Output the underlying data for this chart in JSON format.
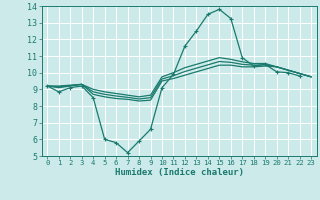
{
  "xlabel": "Humidex (Indice chaleur)",
  "bg_color": "#cceaea",
  "grid_color": "#ffffff",
  "line_color": "#1a7a6e",
  "xlim": [
    -0.5,
    23.5
  ],
  "ylim": [
    5,
    14
  ],
  "xticks": [
    0,
    1,
    2,
    3,
    4,
    5,
    6,
    7,
    8,
    9,
    10,
    11,
    12,
    13,
    14,
    15,
    16,
    17,
    18,
    19,
    20,
    21,
    22,
    23
  ],
  "yticks": [
    5,
    6,
    7,
    8,
    9,
    10,
    11,
    12,
    13,
    14
  ],
  "lines": [
    {
      "x": [
        0,
        1,
        2,
        3,
        4,
        5,
        6,
        7,
        8,
        9,
        10,
        11,
        12,
        13,
        14,
        15,
        16,
        17,
        18,
        19,
        20,
        21,
        22
      ],
      "y": [
        9.2,
        8.85,
        9.1,
        9.2,
        8.5,
        6.0,
        5.8,
        5.2,
        5.9,
        6.6,
        9.1,
        9.9,
        11.6,
        12.5,
        13.5,
        13.8,
        13.25,
        10.9,
        10.4,
        10.5,
        10.05,
        10.0,
        9.8
      ],
      "marker": "+"
    },
    {
      "x": [
        0,
        1,
        2,
        3,
        4,
        5,
        6,
        7,
        8,
        9,
        10,
        11,
        12,
        13,
        14,
        15,
        16,
        17,
        18,
        19,
        20,
        21,
        22,
        23
      ],
      "y": [
        9.2,
        9.2,
        9.25,
        9.3,
        8.7,
        8.55,
        8.45,
        8.4,
        8.3,
        8.35,
        9.5,
        9.65,
        9.85,
        10.05,
        10.25,
        10.45,
        10.45,
        10.35,
        10.35,
        10.4,
        10.35,
        10.15,
        9.95,
        9.75
      ],
      "marker": null
    },
    {
      "x": [
        0,
        1,
        2,
        3,
        4,
        5,
        6,
        7,
        8,
        9,
        10,
        11,
        12,
        13,
        14,
        15,
        16,
        17,
        18,
        19,
        20,
        21,
        22,
        23
      ],
      "y": [
        9.2,
        9.1,
        9.2,
        9.3,
        9.0,
        8.85,
        8.75,
        8.65,
        8.55,
        8.65,
        9.75,
        10.0,
        10.3,
        10.5,
        10.7,
        10.9,
        10.8,
        10.65,
        10.55,
        10.55,
        10.35,
        10.15,
        9.95,
        9.75
      ],
      "marker": null
    },
    {
      "x": [
        0,
        1,
        2,
        3,
        4,
        5,
        6,
        7,
        8,
        9,
        10,
        11,
        12,
        13,
        14,
        15,
        16,
        17,
        18,
        19,
        20,
        21,
        22,
        23
      ],
      "y": [
        9.2,
        9.15,
        9.22,
        9.3,
        8.85,
        8.7,
        8.6,
        8.52,
        8.42,
        8.5,
        9.62,
        9.82,
        10.07,
        10.27,
        10.47,
        10.67,
        10.62,
        10.5,
        10.45,
        10.47,
        10.35,
        10.15,
        9.95,
        9.75
      ],
      "marker": null
    }
  ]
}
